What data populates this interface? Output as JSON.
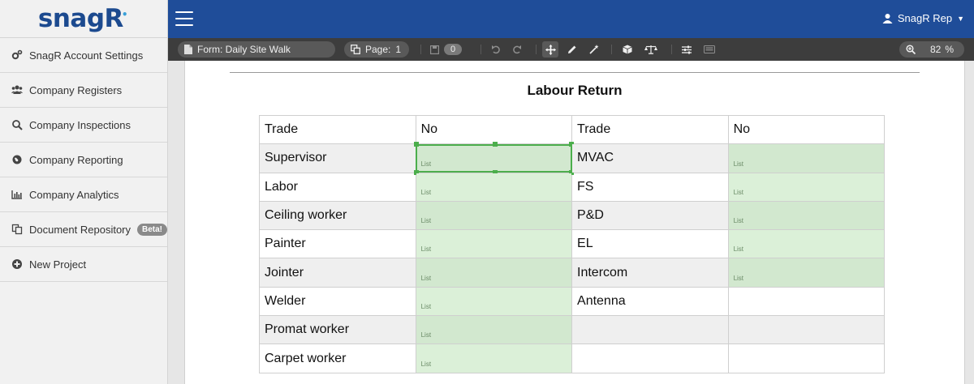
{
  "app": {
    "logo_text": "snagR",
    "brand_color": "#1f4d99"
  },
  "sidebar": {
    "items": [
      {
        "label": "SnagR Account Settings",
        "icon": "gears-icon"
      },
      {
        "label": "Company Registers",
        "icon": "users-icon"
      },
      {
        "label": "Company Inspections",
        "icon": "search-icon"
      },
      {
        "label": "Company Reporting",
        "icon": "globe-icon"
      },
      {
        "label": "Company Analytics",
        "icon": "bar-chart-icon"
      },
      {
        "label": "Document Repository",
        "icon": "documents-icon",
        "badge": "Beta!"
      },
      {
        "label": "New Project",
        "icon": "plus-circle-icon"
      }
    ]
  },
  "topbar": {
    "user_name": "SnagR Rep"
  },
  "toolbar": {
    "form_label": "Form:  Daily Site Walk",
    "page_label": "Page:",
    "page_number": "1",
    "saved_count": "0",
    "zoom_value": "82",
    "zoom_unit": "%"
  },
  "document": {
    "title": "Labour Return",
    "headers": [
      "Trade",
      "No",
      "Trade",
      "No"
    ],
    "field_placeholder": "List",
    "left_trades": [
      "Supervisor",
      "Labor",
      "Ceiling worker",
      "Painter",
      "Jointer",
      "Welder",
      "Promat worker",
      "Carpet worker"
    ],
    "right_trades": [
      "MVAC",
      "FS",
      "P&D",
      "EL",
      "Intercom",
      "Antenna",
      "",
      ""
    ]
  }
}
